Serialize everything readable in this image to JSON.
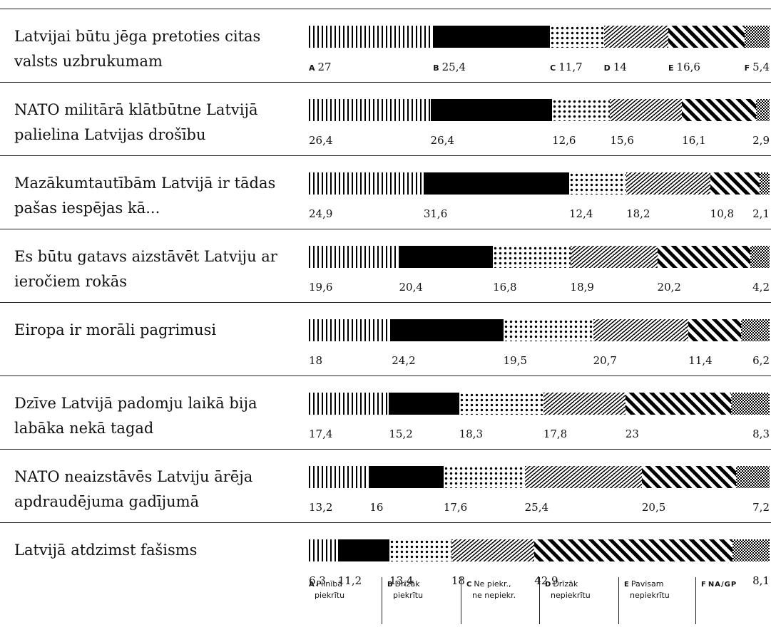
{
  "chart_data": {
    "type": "bar",
    "subtype": "stacked-100-horizontal",
    "legend_keys": [
      "A",
      "B",
      "C",
      "D",
      "E",
      "F"
    ],
    "legend": [
      {
        "key": "A",
        "line1": "Pilnībā",
        "line2": "piekrītu"
      },
      {
        "key": "B",
        "line1": "Drīzāk",
        "line2": "piekrītu"
      },
      {
        "key": "C",
        "line1": "Ne piekr.,",
        "line2": "ne nepiekr."
      },
      {
        "key": "D",
        "line1": "Drīzāk",
        "line2": "nepiekrītu"
      },
      {
        "key": "E",
        "line1": "Pavisam",
        "line2": "nepiekrītu"
      },
      {
        "key": "F",
        "line1": "NA/GP",
        "line2": ""
      }
    ],
    "rows": [
      {
        "label": "Latvijai būtu jēga pretoties citas valsts uzbrukumam",
        "values": [
          27,
          25.4,
          11.7,
          14,
          16.6,
          5.4
        ],
        "value_labels": [
          "27",
          "25,4",
          "11,7",
          "14",
          "16,6",
          "5,4"
        ]
      },
      {
        "label": "NATO militārā klātbūtne Latvijā palielina Latvijas drošību",
        "values": [
          26.4,
          26.4,
          12.6,
          15.6,
          16.1,
          2.9
        ],
        "value_labels": [
          "26,4",
          "26,4",
          "12,6",
          "15,6",
          "16,1",
          "2,9"
        ]
      },
      {
        "label": "Mazākumtautībām Latvijā ir tādas pašas iespējas kā...",
        "values": [
          24.9,
          31.6,
          12.4,
          18.2,
          10.8,
          2.1
        ],
        "value_labels": [
          "24,9",
          "31,6",
          "12,4",
          "18,2",
          "10,8",
          "2,1"
        ]
      },
      {
        "label": "Es būtu gatavs aizstāvēt Latviju ar ieročiem rokās",
        "values": [
          19.6,
          20.4,
          16.8,
          18.9,
          20.2,
          4.2
        ],
        "value_labels": [
          "19,6",
          "20,4",
          "16,8",
          "18,9",
          "20,2",
          "4,2"
        ]
      },
      {
        "label": "Eiropa ir morāli pagrimusi",
        "values": [
          18,
          24.2,
          19.5,
          20.7,
          11.4,
          6.2
        ],
        "value_labels": [
          "18",
          "24,2",
          "19,5",
          "20,7",
          "11,4",
          "6,2"
        ]
      },
      {
        "label": "Dzīve Latvijā padomju laikā bija labāka nekā tagad",
        "values": [
          17.4,
          15.2,
          18.3,
          17.8,
          23,
          8.3
        ],
        "value_labels": [
          "17,4",
          "15,2",
          "18,3",
          "17,8",
          "23",
          "8,3"
        ]
      },
      {
        "label": "NATO neaizstāvēs Latviju ārēja apdraudējuma gadījumā",
        "values": [
          13.2,
          16,
          17.6,
          25.4,
          20.5,
          7.2
        ],
        "value_labels": [
          "13,2",
          "16",
          "17,6",
          "25,4",
          "20,5",
          "7,2"
        ]
      },
      {
        "label": "Latvijā atdzimst fašisms",
        "values": [
          6.3,
          11.2,
          13.4,
          18,
          42.9,
          8.1
        ],
        "value_labels": [
          "6,3",
          "11,2",
          "13,4",
          "18",
          "42,9",
          "8,1"
        ]
      }
    ]
  }
}
